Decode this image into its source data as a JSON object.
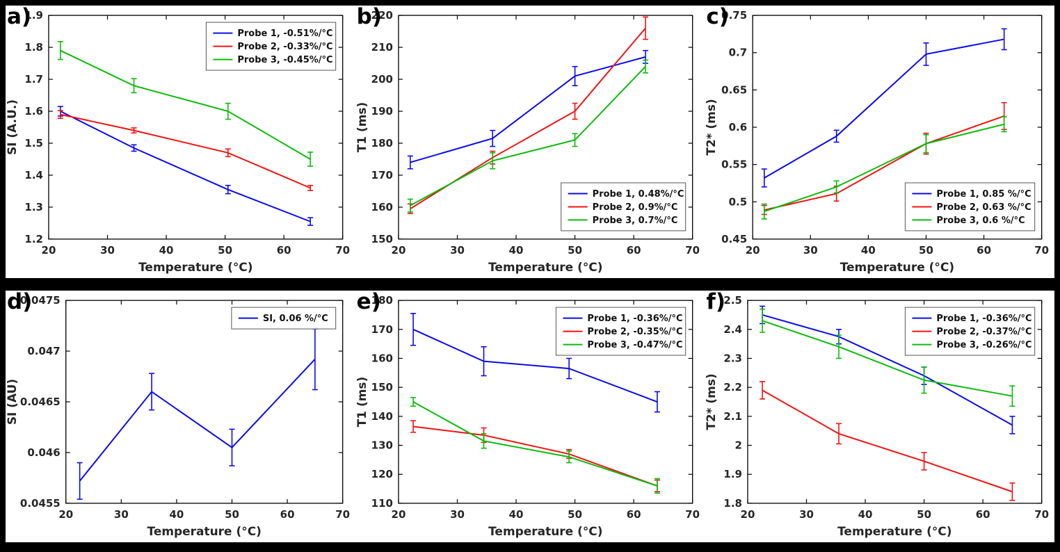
{
  "figure": {
    "background": "#000000",
    "panel_background": "#ffffff",
    "text_color": "#262626",
    "axis_color": "#000000"
  },
  "colors": {
    "probe1": "#0a0aee",
    "probe2": "#f21111",
    "probe3": "#0cbb0c"
  },
  "chart_data": [
    {
      "label": "a)",
      "type": "line",
      "xlabel": "Temperature (°C)",
      "ylabel": "SI (A.U.)",
      "xlim": [
        20,
        70
      ],
      "ylim": [
        1.2,
        1.9
      ],
      "xticks": [
        "20",
        "30",
        "40",
        "50",
        "60",
        "70"
      ],
      "yticks": [
        "1.2",
        "1.3",
        "1.4",
        "1.5",
        "1.6",
        "1.7",
        "1.8",
        "1.9"
      ],
      "grid": false,
      "legend_pos": "top-right",
      "series": [
        {
          "name": "Probe 1, -0.51%/°C",
          "color": "#0a0aee",
          "x": [
            22,
            34.5,
            50.5,
            64.5
          ],
          "y": [
            1.6,
            1.485,
            1.355,
            1.255
          ],
          "yerr": [
            0.015,
            0.01,
            0.013,
            0.012
          ]
        },
        {
          "name": "Probe 2, -0.33%/°C",
          "color": "#f21111",
          "x": [
            22,
            34.5,
            50.5,
            64.5
          ],
          "y": [
            1.59,
            1.54,
            1.47,
            1.36
          ],
          "yerr": [
            0.012,
            0.008,
            0.012,
            0.008
          ]
        },
        {
          "name": "Probe 3, -0.45%/°C",
          "color": "#0cbb0c",
          "x": [
            22,
            34.5,
            50.5,
            64.5
          ],
          "y": [
            1.79,
            1.68,
            1.6,
            1.45
          ],
          "yerr": [
            0.028,
            0.022,
            0.025,
            0.022
          ]
        }
      ]
    },
    {
      "label": "b)",
      "type": "line",
      "xlabel": "Temperature (°C)",
      "ylabel": "T1 (ms)",
      "xlim": [
        20,
        70
      ],
      "ylim": [
        150,
        220
      ],
      "xticks": [
        "20",
        "30",
        "40",
        "50",
        "60",
        "70"
      ],
      "yticks": [
        "150",
        "160",
        "170",
        "180",
        "190",
        "200",
        "210",
        "220"
      ],
      "grid": false,
      "legend_pos": "bottom-right",
      "series": [
        {
          "name": "Probe 1, 0.48%/°C",
          "color": "#0a0aee",
          "x": [
            22,
            36,
            50,
            62
          ],
          "y": [
            174,
            181.5,
            201,
            207
          ],
          "yerr": [
            2,
            2.5,
            3,
            2
          ]
        },
        {
          "name": "Probe 2, 0.9%/°C",
          "color": "#f21111",
          "x": [
            22,
            36,
            50,
            62
          ],
          "y": [
            159.5,
            175.5,
            190,
            216
          ],
          "yerr": [
            1.5,
            2,
            2.5,
            3.5
          ]
        },
        {
          "name": "Probe 3, 0.7%/°C",
          "color": "#0cbb0c",
          "x": [
            22,
            36,
            50,
            62
          ],
          "y": [
            160.5,
            174.5,
            181,
            204
          ],
          "yerr": [
            2,
            2.5,
            2,
            2
          ]
        }
      ]
    },
    {
      "label": "c)",
      "type": "line",
      "xlabel": "Temperature (°C)",
      "ylabel": "T2* (ms)",
      "xlim": [
        20,
        70
      ],
      "ylim": [
        0.45,
        0.75
      ],
      "xticks": [
        "20",
        "30",
        "40",
        "50",
        "60",
        "70"
      ],
      "yticks": [
        "0.45",
        "0.5",
        "0.55",
        "0.6",
        "0.65",
        "0.7",
        "0.75"
      ],
      "grid": false,
      "legend_pos": "bottom-right",
      "series": [
        {
          "name": "Probe 1, 0.85 %/°C",
          "color": "#0a0aee",
          "x": [
            22,
            34.5,
            50,
            63.5
          ],
          "y": [
            0.532,
            0.588,
            0.698,
            0.718
          ],
          "yerr": [
            0.012,
            0.008,
            0.015,
            0.014
          ]
        },
        {
          "name": "Probe 2, 0.63 %/°C",
          "color": "#f21111",
          "x": [
            22,
            34.5,
            50,
            63.5
          ],
          "y": [
            0.489,
            0.511,
            0.578,
            0.615
          ],
          "yerr": [
            0.006,
            0.01,
            0.014,
            0.018
          ]
        },
        {
          "name": "Probe 3, 0.6 %/°C",
          "color": "#0cbb0c",
          "x": [
            22,
            34.5,
            50,
            63.5
          ],
          "y": [
            0.487,
            0.52,
            0.578,
            0.604
          ],
          "yerr": [
            0.01,
            0.008,
            0.012,
            0.01
          ]
        }
      ]
    },
    {
      "label": "d)",
      "type": "line",
      "xlabel": "Temperature (°C)",
      "ylabel": "SI (AU)",
      "xlim": [
        20,
        70
      ],
      "ylim": [
        0.0455,
        0.0475
      ],
      "xticks": [
        "20",
        "30",
        "40",
        "50",
        "60",
        "70"
      ],
      "yticks": [
        "0.0455",
        "0.046",
        "0.0465",
        "0.047",
        "0.0475"
      ],
      "grid": false,
      "legend_pos": "top-right",
      "series": [
        {
          "name": "SI, 0.06 %/°C",
          "color": "#0a0aee",
          "x": [
            22.5,
            35.5,
            50,
            65
          ],
          "y": [
            0.04572,
            0.0466,
            0.04605,
            0.04692
          ],
          "yerr": [
            0.00018,
            0.00018,
            0.00018,
            0.0003
          ]
        }
      ]
    },
    {
      "label": "e)",
      "type": "line",
      "xlabel": "Temperature (°C)",
      "ylabel": "T1 (ms)",
      "xlim": [
        20,
        70
      ],
      "ylim": [
        110,
        180
      ],
      "xticks": [
        "20",
        "30",
        "40",
        "50",
        "60",
        "70"
      ],
      "yticks": [
        "110",
        "120",
        "130",
        "140",
        "150",
        "160",
        "170",
        "180"
      ],
      "grid": false,
      "legend_pos": "top-right",
      "series": [
        {
          "name": "Probe 1, -0.36%/°C",
          "color": "#0a0aee",
          "x": [
            22.5,
            34.5,
            49,
            64
          ],
          "y": [
            170,
            159,
            156.5,
            145
          ],
          "yerr": [
            5.5,
            5,
            3.5,
            3.5
          ]
        },
        {
          "name": "Probe 2, -0.35%/°C",
          "color": "#f21111",
          "x": [
            22.5,
            34.5,
            49,
            64
          ],
          "y": [
            136.5,
            133.5,
            127,
            116
          ],
          "yerr": [
            2,
            2.5,
            1.5,
            2
          ]
        },
        {
          "name": "Probe 3, -0.47%/°C",
          "color": "#0cbb0c",
          "x": [
            22.5,
            34.5,
            49,
            64
          ],
          "y": [
            145,
            131.5,
            126,
            116
          ],
          "yerr": [
            1.5,
            2.5,
            2,
            2.5
          ]
        }
      ]
    },
    {
      "label": "f)",
      "type": "line",
      "xlabel": "Temperature (°C)",
      "ylabel": "T2* (ms)",
      "xlim": [
        20,
        70
      ],
      "ylim": [
        1.8,
        2.5
      ],
      "xticks": [
        "20",
        "30",
        "40",
        "50",
        "60",
        "70"
      ],
      "yticks": [
        "1.8",
        "1.9",
        "2",
        "2.1",
        "2.2",
        "2.3",
        "2.4",
        "2.5"
      ],
      "grid": false,
      "legend_pos": "top-right",
      "series": [
        {
          "name": "Probe 1, -0.36%/°C",
          "color": "#0a0aee",
          "x": [
            22.5,
            35.5,
            50,
            65
          ],
          "y": [
            2.45,
            2.375,
            2.24,
            2.07
          ],
          "yerr": [
            0.03,
            0.025,
            0.03,
            0.03
          ]
        },
        {
          "name": "Probe 2, -0.37%/°C",
          "color": "#f21111",
          "x": [
            22.5,
            35.5,
            50,
            65
          ],
          "y": [
            2.19,
            2.04,
            1.945,
            1.84
          ],
          "yerr": [
            0.03,
            0.035,
            0.03,
            0.03
          ]
        },
        {
          "name": "Probe 3, -0.26%/°C",
          "color": "#0cbb0c",
          "x": [
            22.5,
            35.5,
            50,
            65
          ],
          "y": [
            2.43,
            2.34,
            2.225,
            2.17
          ],
          "yerr": [
            0.04,
            0.04,
            0.045,
            0.035
          ]
        }
      ]
    }
  ]
}
